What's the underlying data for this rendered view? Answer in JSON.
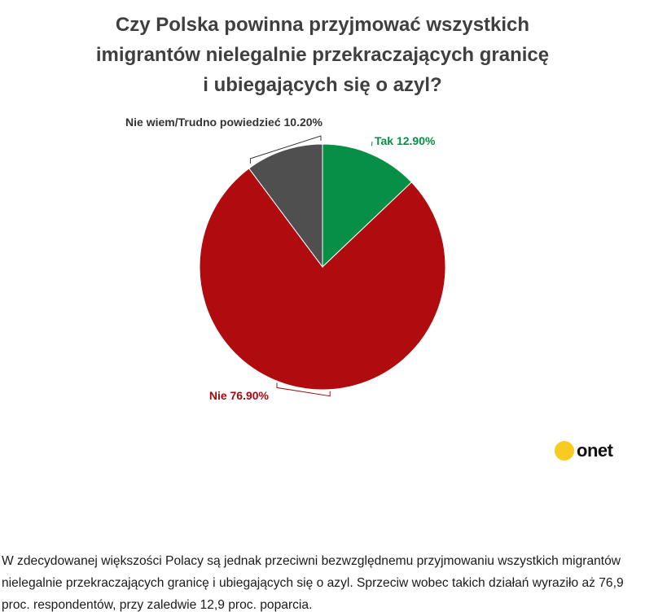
{
  "chart_data": {
    "type": "pie",
    "title": "Czy Polska powinna przyjmować wszystkich imigrantów nielegalnie przekraczających granicę i ubiegających się o azyl?",
    "title_lines": [
      "Czy Polska powinna przyjmować wszystkich",
      "imigrantów nielegalnie przekraczających granicę",
      "i ubiegających się o azyl?"
    ],
    "slices": [
      {
        "label": "Tak",
        "value": 12.9,
        "display": "Tak 12.90%",
        "color": "#068f45",
        "label_color": "#068f45"
      },
      {
        "label": "Nie",
        "value": 76.9,
        "display": "Nie 76.90%",
        "color": "#b00c0f",
        "label_color": "#a10b0e"
      },
      {
        "label": "Nie wiem/Trudno powiedzieć",
        "value": 10.2,
        "display": "Nie wiem/Trudno powiedzieć 10.20%",
        "color": "#4f4f4f",
        "label_color": "#333333"
      }
    ],
    "start_angle_deg": 0,
    "direction": "clockwise",
    "legend": "none"
  },
  "logo": {
    "text": "onet",
    "dot_color": "#f7cb1f"
  },
  "caption": "W zdecydowanej większości Polacy są jednak przeciwni bezwzględnemu przyjmowaniu wszystkich migrantów nielegalnie przekraczających granicę i ubiegających się o azyl. Sprzeciw wobec takich działań wyraziło aż 76,9 proc. respondentów, przy zaledwie 12,9 proc. poparcia."
}
